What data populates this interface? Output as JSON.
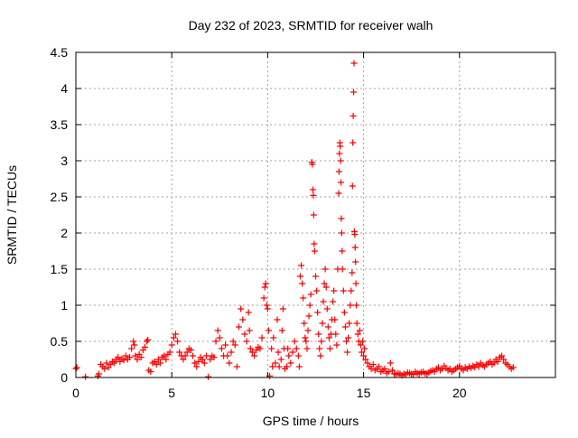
{
  "chart_data": {
    "type": "scatter",
    "title": "Day 232 of 2023, SRMTID for receiver walh",
    "xlabel": "GPS time / hours",
    "ylabel": "SRMTID / TECUs",
    "xlim": [
      0,
      25
    ],
    "ylim": [
      0,
      4.5
    ],
    "xticks": [
      0,
      5,
      10,
      15,
      20
    ],
    "xtick_labels": [
      "0",
      "5",
      "10",
      "15",
      "20"
    ],
    "yticks": [
      0,
      0.5,
      1,
      1.5,
      2,
      2.5,
      3,
      3.5,
      4,
      4.5
    ],
    "ytick_labels": [
      "0",
      "0.5",
      "1",
      "1.5",
      "2",
      "2.5",
      "3",
      "3.5",
      "4",
      "4.5"
    ],
    "grid": true,
    "marker": "+",
    "series": [
      {
        "name": "SRMTID",
        "color": "#ff0000",
        "points": [
          [
            0.0,
            0.12
          ],
          [
            0.05,
            0.14
          ],
          [
            0.5,
            0.01
          ],
          [
            1.15,
            0.02
          ],
          [
            1.2,
            0.05
          ],
          [
            1.3,
            0.18
          ],
          [
            1.4,
            0.15
          ],
          [
            1.5,
            0.12
          ],
          [
            1.6,
            0.2
          ],
          [
            1.7,
            0.14
          ],
          [
            1.8,
            0.18
          ],
          [
            1.9,
            0.22
          ],
          [
            2.0,
            0.2
          ],
          [
            2.1,
            0.25
          ],
          [
            2.2,
            0.28
          ],
          [
            2.3,
            0.22
          ],
          [
            2.4,
            0.26
          ],
          [
            2.5,
            0.24
          ],
          [
            2.6,
            0.3
          ],
          [
            2.7,
            0.25
          ],
          [
            2.8,
            0.28
          ],
          [
            2.9,
            0.4
          ],
          [
            3.0,
            0.5
          ],
          [
            3.05,
            0.45
          ],
          [
            3.1,
            0.3
          ],
          [
            3.2,
            0.25
          ],
          [
            3.3,
            0.32
          ],
          [
            3.4,
            0.28
          ],
          [
            3.5,
            0.38
          ],
          [
            3.6,
            0.42
          ],
          [
            3.7,
            0.5
          ],
          [
            3.75,
            0.52
          ],
          [
            3.8,
            0.1
          ],
          [
            3.9,
            0.08
          ],
          [
            4.0,
            0.2
          ],
          [
            4.1,
            0.22
          ],
          [
            4.2,
            0.18
          ],
          [
            4.3,
            0.25
          ],
          [
            4.4,
            0.2
          ],
          [
            4.5,
            0.28
          ],
          [
            4.6,
            0.3
          ],
          [
            4.7,
            0.25
          ],
          [
            4.8,
            0.32
          ],
          [
            4.9,
            0.35
          ],
          [
            5.0,
            0.45
          ],
          [
            5.1,
            0.55
          ],
          [
            5.2,
            0.6
          ],
          [
            5.3,
            0.5
          ],
          [
            5.4,
            0.35
          ],
          [
            5.5,
            0.3
          ],
          [
            5.6,
            0.25
          ],
          [
            5.7,
            0.3
          ],
          [
            5.8,
            0.35
          ],
          [
            5.9,
            0.4
          ],
          [
            6.0,
            0.38
          ],
          [
            6.1,
            0.3
          ],
          [
            6.2,
            0.2
          ],
          [
            6.3,
            0.15
          ],
          [
            6.4,
            0.22
          ],
          [
            6.5,
            0.28
          ],
          [
            6.6,
            0.25
          ],
          [
            6.7,
            0.2
          ],
          [
            6.8,
            0.3
          ],
          [
            6.9,
            0.01
          ],
          [
            7.0,
            0.25
          ],
          [
            7.1,
            0.3
          ],
          [
            7.2,
            0.28
          ],
          [
            7.3,
            0.5
          ],
          [
            7.4,
            0.65
          ],
          [
            7.5,
            0.55
          ],
          [
            7.6,
            0.4
          ],
          [
            7.7,
            0.3
          ],
          [
            7.8,
            0.45
          ],
          [
            7.9,
            0.3
          ],
          [
            8.0,
            0.2
          ],
          [
            8.1,
            0.35
          ],
          [
            8.2,
            0.5
          ],
          [
            8.3,
            0.45
          ],
          [
            8.4,
            0.15
          ],
          [
            8.5,
            0.7
          ],
          [
            8.6,
            0.95
          ],
          [
            8.7,
            0.8
          ],
          [
            8.8,
            0.6
          ],
          [
            8.9,
            0.5
          ],
          [
            9.0,
            0.9
          ],
          [
            9.05,
            0.65
          ],
          [
            9.1,
            0.4
          ],
          [
            9.2,
            0.35
          ],
          [
            9.3,
            0.3
          ],
          [
            9.4,
            0.38
          ],
          [
            9.5,
            0.42
          ],
          [
            9.6,
            0.4
          ],
          [
            9.7,
            0.55
          ],
          [
            9.8,
            1.1
          ],
          [
            9.85,
            1.25
          ],
          [
            9.9,
            1.3
          ],
          [
            9.95,
            1.0
          ],
          [
            10.0,
            0.95
          ],
          [
            10.05,
            0.65
          ],
          [
            10.1,
            0.02
          ],
          [
            10.2,
            0.4
          ],
          [
            10.25,
            0.15
          ],
          [
            10.3,
            0.55
          ],
          [
            10.4,
            0.2
          ],
          [
            10.5,
            0.8
          ],
          [
            10.55,
            0.35
          ],
          [
            10.6,
            0.15
          ],
          [
            10.7,
            0.25
          ],
          [
            10.75,
            0.65
          ],
          [
            10.8,
            0.95
          ],
          [
            10.85,
            0.4
          ],
          [
            10.9,
            0.12
          ],
          [
            11.0,
            0.15
          ],
          [
            11.05,
            0.4
          ],
          [
            11.1,
            0.3
          ],
          [
            11.2,
            0.2
          ],
          [
            11.3,
            0.35
          ],
          [
            11.4,
            0.5
          ],
          [
            11.5,
            0.4
          ],
          [
            11.6,
            0.3
          ],
          [
            11.65,
            0.15
          ],
          [
            11.7,
            1.4
          ],
          [
            11.75,
            1.55
          ],
          [
            11.8,
            1.3
          ],
          [
            11.85,
            1.1
          ],
          [
            11.9,
            0.75
          ],
          [
            11.95,
            0.55
          ],
          [
            12.0,
            0.5
          ],
          [
            12.05,
            0.4
          ],
          [
            12.1,
            0.65
          ],
          [
            12.15,
            0.85
          ],
          [
            12.2,
            1.0
          ],
          [
            12.25,
            1.15
          ],
          [
            12.3,
            2.98
          ],
          [
            12.33,
            2.95
          ],
          [
            12.36,
            2.6
          ],
          [
            12.38,
            2.52
          ],
          [
            12.4,
            2.25
          ],
          [
            12.42,
            1.85
          ],
          [
            12.45,
            1.75
          ],
          [
            12.5,
            1.4
          ],
          [
            12.55,
            1.2
          ],
          [
            12.6,
            0.9
          ],
          [
            12.65,
            0.6
          ],
          [
            12.7,
            0.4
          ],
          [
            12.75,
            0.3
          ],
          [
            12.8,
            0.5
          ],
          [
            12.85,
            0.75
          ],
          [
            12.9,
            1.05
          ],
          [
            12.95,
            1.3
          ],
          [
            13.0,
            1.5
          ],
          [
            13.05,
            1.25
          ],
          [
            13.1,
            0.95
          ],
          [
            13.15,
            0.7
          ],
          [
            13.2,
            0.55
          ],
          [
            13.25,
            0.4
          ],
          [
            13.3,
            0.6
          ],
          [
            13.35,
            0.8
          ],
          [
            13.4,
            1.05
          ],
          [
            13.45,
            1.2
          ],
          [
            13.5,
            0.8
          ],
          [
            13.55,
            0.6
          ],
          [
            13.6,
            0.45
          ],
          [
            13.65,
            1.5
          ],
          [
            13.7,
            2.55
          ],
          [
            13.72,
            2.85
          ],
          [
            13.74,
            3.1
          ],
          [
            13.76,
            3.25
          ],
          [
            13.78,
            3.2
          ],
          [
            13.8,
            3.0
          ],
          [
            13.82,
            2.7
          ],
          [
            13.84,
            2.2
          ],
          [
            13.86,
            2.0
          ],
          [
            13.88,
            1.75
          ],
          [
            13.9,
            1.5
          ],
          [
            13.95,
            1.2
          ],
          [
            14.0,
            0.9
          ],
          [
            14.05,
            0.7
          ],
          [
            14.1,
            0.5
          ],
          [
            14.15,
            0.35
          ],
          [
            14.2,
            0.55
          ],
          [
            14.25,
            0.75
          ],
          [
            14.3,
            1.0
          ],
          [
            14.35,
            1.2
          ],
          [
            14.4,
            1.45
          ],
          [
            14.42,
            2.65
          ],
          [
            14.44,
            3.25
          ],
          [
            14.46,
            3.62
          ],
          [
            14.48,
            3.95
          ],
          [
            14.5,
            4.35
          ],
          [
            14.52,
            2.02
          ],
          [
            14.54,
            1.98
          ],
          [
            14.56,
            1.8
          ],
          [
            14.58,
            1.6
          ],
          [
            14.6,
            1.3
          ],
          [
            14.62,
            1.0
          ],
          [
            14.65,
            0.75
          ],
          [
            14.7,
            0.6
          ],
          [
            14.75,
            0.5
          ],
          [
            14.8,
            0.65
          ],
          [
            14.85,
            0.45
          ],
          [
            14.9,
            0.35
          ],
          [
            14.95,
            0.5
          ],
          [
            15.0,
            0.3
          ],
          [
            15.05,
            0.4
          ],
          [
            15.1,
            0.25
          ],
          [
            15.2,
            0.2
          ],
          [
            15.3,
            0.15
          ],
          [
            15.4,
            0.12
          ],
          [
            15.5,
            0.18
          ],
          [
            15.6,
            0.1
          ],
          [
            15.7,
            0.12
          ],
          [
            15.8,
            0.15
          ],
          [
            15.9,
            0.08
          ],
          [
            16.0,
            0.1
          ],
          [
            16.1,
            0.12
          ],
          [
            16.2,
            0.06
          ],
          [
            16.3,
            0.08
          ],
          [
            16.4,
            0.2
          ],
          [
            16.5,
            0.1
          ],
          [
            16.6,
            0.05
          ],
          [
            16.7,
            0.04
          ],
          [
            16.8,
            0.06
          ],
          [
            16.9,
            0.05
          ],
          [
            17.0,
            0.03
          ],
          [
            17.1,
            0.05
          ],
          [
            17.2,
            0.04
          ],
          [
            17.3,
            0.07
          ],
          [
            17.4,
            0.06
          ],
          [
            17.5,
            0.05
          ],
          [
            17.6,
            0.04
          ],
          [
            17.7,
            0.08
          ],
          [
            17.8,
            0.06
          ],
          [
            17.9,
            0.05
          ],
          [
            18.0,
            0.07
          ],
          [
            18.1,
            0.08
          ],
          [
            18.2,
            0.06
          ],
          [
            18.3,
            0.05
          ],
          [
            18.4,
            0.07
          ],
          [
            18.5,
            0.09
          ],
          [
            18.6,
            0.1
          ],
          [
            18.7,
            0.08
          ],
          [
            18.8,
            0.12
          ],
          [
            18.9,
            0.14
          ],
          [
            19.0,
            0.1
          ],
          [
            19.1,
            0.12
          ],
          [
            19.2,
            0.16
          ],
          [
            19.3,
            0.13
          ],
          [
            19.4,
            0.1
          ],
          [
            19.5,
            0.12
          ],
          [
            19.6,
            0.08
          ],
          [
            19.7,
            0.1
          ],
          [
            19.8,
            0.12
          ],
          [
            19.9,
            0.14
          ],
          [
            20.0,
            0.16
          ],
          [
            20.1,
            0.12
          ],
          [
            20.2,
            0.1
          ],
          [
            20.3,
            0.14
          ],
          [
            20.4,
            0.12
          ],
          [
            20.5,
            0.15
          ],
          [
            20.6,
            0.13
          ],
          [
            20.7,
            0.16
          ],
          [
            20.8,
            0.14
          ],
          [
            20.9,
            0.18
          ],
          [
            21.0,
            0.15
          ],
          [
            21.1,
            0.2
          ],
          [
            21.2,
            0.17
          ],
          [
            21.3,
            0.15
          ],
          [
            21.4,
            0.18
          ],
          [
            21.5,
            0.2
          ],
          [
            21.6,
            0.22
          ],
          [
            21.7,
            0.18
          ],
          [
            21.8,
            0.2
          ],
          [
            21.9,
            0.25
          ],
          [
            22.0,
            0.22
          ],
          [
            22.1,
            0.28
          ],
          [
            22.2,
            0.3
          ],
          [
            22.3,
            0.25
          ],
          [
            22.4,
            0.2
          ],
          [
            22.5,
            0.18
          ],
          [
            22.6,
            0.15
          ],
          [
            22.7,
            0.12
          ],
          [
            22.8,
            0.14
          ]
        ]
      }
    ]
  }
}
